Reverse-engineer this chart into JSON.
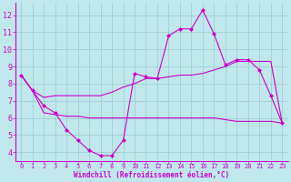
{
  "xlabel": "Windchill (Refroidissement éolien,°C)",
  "background_color": "#c0e8ec",
  "grid_color": "#98c8d0",
  "line_color": "#cc00cc",
  "xlim": [
    -0.5,
    23.5
  ],
  "ylim": [
    3.5,
    12.7
  ],
  "yticks": [
    4,
    5,
    6,
    7,
    8,
    9,
    10,
    11,
    12
  ],
  "xticks": [
    0,
    1,
    2,
    3,
    4,
    5,
    6,
    7,
    8,
    9,
    10,
    11,
    12,
    13,
    14,
    15,
    16,
    17,
    18,
    19,
    20,
    21,
    22,
    23
  ],
  "series1_x": [
    0,
    1,
    2,
    3,
    4,
    5,
    6,
    7,
    8,
    9,
    10,
    11,
    12,
    13,
    14,
    15,
    16,
    17,
    18,
    19,
    20,
    21,
    22,
    23
  ],
  "series1_y": [
    8.5,
    7.6,
    6.7,
    6.3,
    5.3,
    4.7,
    4.1,
    3.8,
    3.8,
    4.7,
    8.6,
    8.4,
    8.3,
    10.8,
    11.2,
    11.2,
    12.3,
    10.9,
    9.1,
    9.4,
    9.4,
    8.8,
    7.3,
    5.7
  ],
  "series2_x": [
    0,
    1,
    2,
    3,
    4,
    5,
    6,
    7,
    8,
    9,
    10,
    11,
    12,
    13,
    14,
    15,
    16,
    17,
    18,
    19,
    20,
    21,
    22,
    23
  ],
  "series2_y": [
    8.5,
    7.6,
    7.2,
    7.3,
    7.3,
    7.3,
    7.3,
    7.3,
    7.5,
    7.8,
    8.0,
    8.3,
    8.3,
    8.4,
    8.5,
    8.5,
    8.6,
    8.8,
    9.0,
    9.3,
    9.3,
    9.3,
    9.3,
    5.7
  ],
  "series3_x": [
    0,
    1,
    2,
    3,
    4,
    5,
    6,
    7,
    8,
    9,
    10,
    11,
    12,
    13,
    14,
    15,
    16,
    17,
    18,
    19,
    20,
    21,
    22,
    23
  ],
  "series3_y": [
    8.5,
    7.6,
    6.3,
    6.2,
    6.1,
    6.1,
    6.0,
    6.0,
    6.0,
    6.0,
    6.0,
    6.0,
    6.0,
    6.0,
    6.0,
    6.0,
    6.0,
    6.0,
    5.9,
    5.8,
    5.8,
    5.8,
    5.8,
    5.7
  ]
}
